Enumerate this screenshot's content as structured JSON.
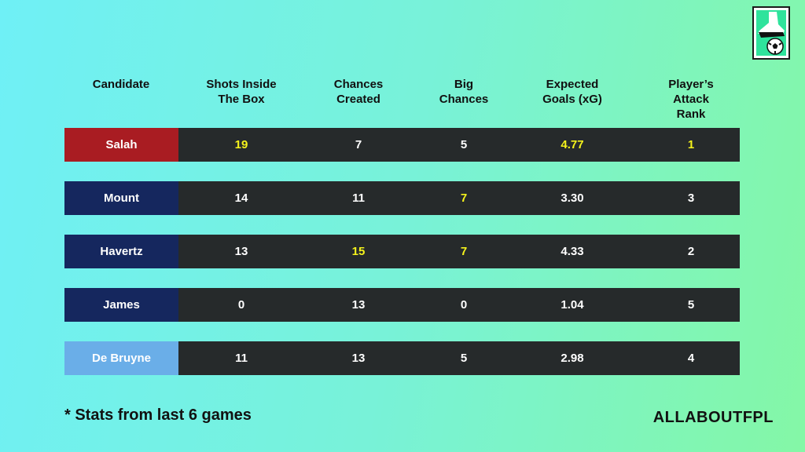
{
  "headers": [
    "Candidate",
    "Shots Inside\nThe Box",
    "Chances\nCreated",
    "Big\nChances",
    "Expected\nGoals (xG)",
    "Player’s\nAttack Rank"
  ],
  "rows": [
    {
      "name": "Salah",
      "color": "#a91c22",
      "values": [
        "19",
        "7",
        "5",
        "4.77",
        "1"
      ],
      "highlight": [
        true,
        false,
        false,
        true,
        true
      ]
    },
    {
      "name": "Mount",
      "color": "#15275e",
      "values": [
        "14",
        "11",
        "7",
        "3.30",
        "3"
      ],
      "highlight": [
        false,
        false,
        true,
        false,
        false
      ]
    },
    {
      "name": "Havertz",
      "color": "#15275e",
      "values": [
        "13",
        "15",
        "7",
        "4.33",
        "2"
      ],
      "highlight": [
        false,
        true,
        true,
        false,
        false
      ]
    },
    {
      "name": "James",
      "color": "#15275e",
      "values": [
        "0",
        "13",
        "0",
        "1.04",
        "5"
      ],
      "highlight": [
        false,
        false,
        false,
        false,
        false
      ]
    },
    {
      "name": "De Bruyne",
      "color": "#6aaee8",
      "values": [
        "11",
        "13",
        "5",
        "2.98",
        "4"
      ],
      "highlight": [
        false,
        false,
        false,
        false,
        false
      ]
    }
  ],
  "footnote": "*  Stats from last 6 games",
  "brand": "ALLABOUTFPL",
  "logo_icon": "boot-and-football-icon"
}
